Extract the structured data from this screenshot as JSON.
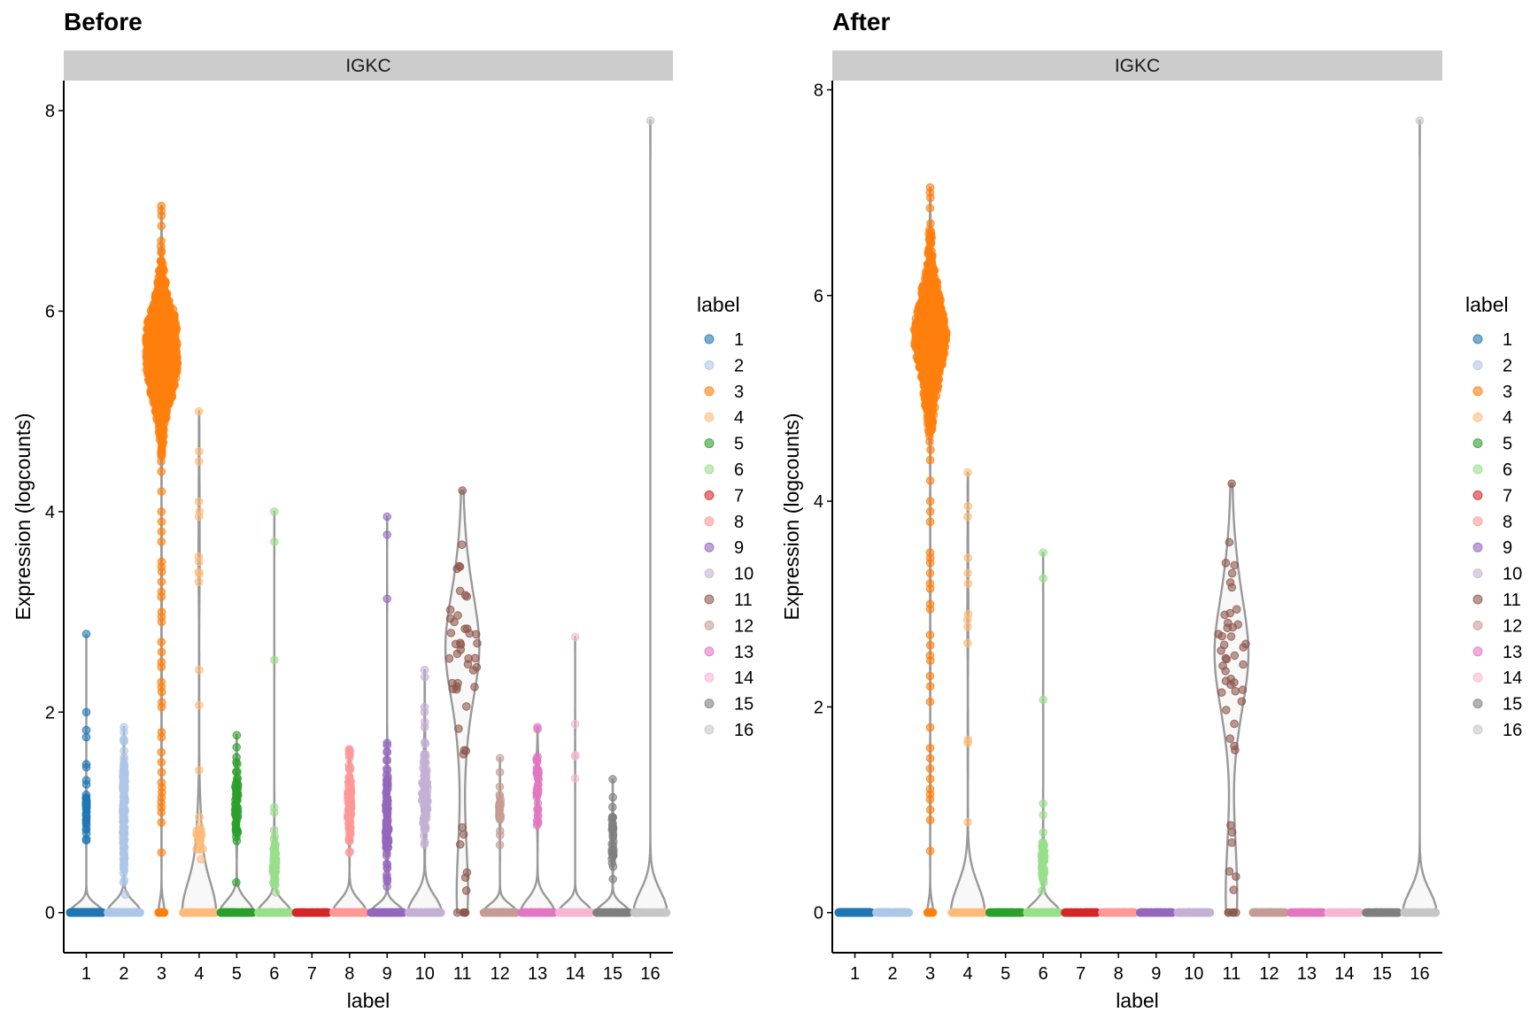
{
  "chart_data": [
    {
      "type": "violin",
      "title": "Before",
      "strip": "IGKC",
      "xlabel": "label",
      "ylabel": "Expression (logcounts)",
      "ylim": [
        -0.4,
        8.3
      ],
      "yticks": [
        0,
        2,
        4,
        6,
        8
      ],
      "categories": [
        "1",
        "2",
        "3",
        "4",
        "5",
        "6",
        "7",
        "8",
        "9",
        "10",
        "11",
        "12",
        "13",
        "14",
        "15",
        "16"
      ],
      "groups": [
        {
          "label": "1",
          "n_zero": 800,
          "cluster": {
            "n": 30,
            "mean": 1.0,
            "sd": 0.15
          },
          "extra": [
            2.78,
            2.0,
            1.82,
            1.75,
            1.48,
            1.45,
            1.32,
            0.72
          ]
        },
        {
          "label": "2",
          "n_zero": 600,
          "cluster": {
            "n": 150,
            "mean": 1.0,
            "sd": 0.33
          },
          "extra": [
            1.85,
            1.8,
            0.3,
            0.18
          ]
        },
        {
          "label": "3",
          "n_zero": 40,
          "cluster": {
            "n": 900,
            "mean": 5.6,
            "sd": 0.42
          },
          "extra": [
            7.05,
            7.0,
            6.95,
            6.85,
            6.7,
            6.6,
            4.7,
            4.5,
            4.4,
            4.2,
            4.0,
            3.9,
            3.8,
            3.7,
            3.5,
            3.45,
            3.4,
            3.3,
            3.2,
            3.15,
            3.0,
            2.95,
            2.9,
            2.7,
            2.6,
            2.5,
            2.45,
            2.3,
            2.25,
            2.2,
            2.1,
            2.05,
            1.8,
            1.75,
            1.6,
            1.5,
            1.4,
            1.3,
            1.25,
            1.2,
            1.15,
            1.1,
            1.05,
            1.0,
            0.9,
            0.6
          ]
        },
        {
          "label": "4",
          "n_zero": 150,
          "cluster": {
            "n": 20,
            "mean": 0.75,
            "sd": 0.12
          },
          "extra": [
            5.0,
            4.6,
            4.5,
            4.1,
            4.0,
            3.95,
            3.55,
            3.5,
            3.4,
            3.38,
            3.3,
            2.42,
            2.07,
            1.42
          ]
        },
        {
          "label": "5",
          "n_zero": 300,
          "cluster": {
            "n": 60,
            "mean": 1.05,
            "sd": 0.2
          },
          "extra": [
            1.77,
            1.65,
            1.55,
            1.5,
            1.48,
            0.3
          ]
        },
        {
          "label": "6",
          "n_zero": 300,
          "cluster": {
            "n": 60,
            "mean": 0.5,
            "sd": 0.15
          },
          "extra": [
            4.0,
            3.7,
            2.52,
            1.05,
            1.0
          ]
        },
        {
          "label": "7",
          "n_zero": 200,
          "cluster": {
            "n": 0,
            "mean": 0,
            "sd": 0
          },
          "extra": []
        },
        {
          "label": "8",
          "n_zero": 400,
          "cluster": {
            "n": 100,
            "mean": 1.1,
            "sd": 0.22
          },
          "extra": [
            1.63,
            1.6,
            0.6
          ]
        },
        {
          "label": "9",
          "n_zero": 300,
          "cluster": {
            "n": 100,
            "mean": 0.95,
            "sd": 0.3
          },
          "extra": [
            3.95,
            3.77,
            3.13,
            1.67,
            1.6,
            0.35,
            0.33
          ]
        },
        {
          "label": "10",
          "n_zero": 250,
          "cluster": {
            "n": 80,
            "mean": 1.2,
            "sd": 0.2
          },
          "extra": [
            2.42,
            2.35,
            2.05,
            2.0,
            1.9,
            1.85,
            1.7,
            0.68
          ]
        },
        {
          "label": "11",
          "n_zero": 5,
          "cluster": {
            "n": 35,
            "mean": 2.5,
            "sd": 0.45
          },
          "extra": [
            4.21,
            3.67,
            3.45,
            1.62,
            1.58,
            0.85,
            0.78,
            0.68,
            0.4,
            0.35,
            0.22
          ]
        },
        {
          "label": "12",
          "n_zero": 300,
          "cluster": {
            "n": 25,
            "mean": 1.05,
            "sd": 0.18
          },
          "extra": [
            1.54,
            1.4
          ]
        },
        {
          "label": "13",
          "n_zero": 250,
          "cluster": {
            "n": 40,
            "mean": 1.3,
            "sd": 0.2
          },
          "extra": [
            1.85,
            1.83,
            0.97
          ]
        },
        {
          "label": "14",
          "n_zero": 200,
          "cluster": {
            "n": 0,
            "mean": 0,
            "sd": 0
          },
          "extra": [
            2.75,
            1.88,
            1.57,
            1.56,
            1.34
          ]
        },
        {
          "label": "15",
          "n_zero": 200,
          "cluster": {
            "n": 30,
            "mean": 0.7,
            "sd": 0.15
          },
          "extra": [
            1.33,
            1.15,
            0.95
          ]
        },
        {
          "label": "16",
          "n_zero": 150,
          "cluster": {
            "n": 0,
            "mean": 0,
            "sd": 0
          },
          "extra": [
            7.9
          ]
        }
      ]
    },
    {
      "type": "violin",
      "title": "After",
      "strip": "IGKC",
      "xlabel": "label",
      "ylabel": "Expression (logcounts)",
      "ylim": [
        -0.39,
        8.09
      ],
      "yticks": [
        0,
        2,
        4,
        6,
        8
      ],
      "categories": [
        "1",
        "2",
        "3",
        "4",
        "5",
        "6",
        "7",
        "8",
        "9",
        "10",
        "11",
        "12",
        "13",
        "14",
        "15",
        "16"
      ],
      "groups": [
        {
          "label": "1",
          "n_zero": 800,
          "cluster": {
            "n": 0,
            "mean": 0,
            "sd": 0
          },
          "extra": []
        },
        {
          "label": "2",
          "n_zero": 600,
          "cluster": {
            "n": 0,
            "mean": 0,
            "sd": 0
          },
          "extra": []
        },
        {
          "label": "3",
          "n_zero": 40,
          "cluster": {
            "n": 900,
            "mean": 5.6,
            "sd": 0.42
          },
          "extra": [
            7.05,
            7.0,
            6.95,
            6.85,
            6.7,
            6.6,
            4.7,
            4.5,
            4.4,
            4.2,
            4.0,
            3.9,
            3.8,
            3.5,
            3.45,
            3.4,
            3.3,
            3.2,
            3.15,
            3.0,
            2.95,
            2.7,
            2.6,
            2.5,
            2.45,
            2.3,
            2.2,
            2.05,
            1.8,
            1.6,
            1.5,
            1.4,
            1.3,
            1.2,
            1.15,
            1.1,
            1.0,
            0.9,
            0.6
          ]
        },
        {
          "label": "4",
          "n_zero": 150,
          "cluster": {
            "n": 0,
            "mean": 0,
            "sd": 0
          },
          "extra": [
            4.28,
            3.95,
            3.85,
            3.45,
            3.3,
            3.2,
            2.9,
            2.85,
            2.78,
            2.62,
            1.68,
            1.65,
            0.88
          ]
        },
        {
          "label": "5",
          "n_zero": 300,
          "cluster": {
            "n": 0,
            "mean": 0,
            "sd": 0
          },
          "extra": []
        },
        {
          "label": "6",
          "n_zero": 300,
          "cluster": {
            "n": 50,
            "mean": 0.48,
            "sd": 0.12
          },
          "extra": [
            3.5,
            3.25,
            2.07,
            1.06,
            0.95,
            0.78
          ]
        },
        {
          "label": "7",
          "n_zero": 200,
          "cluster": {
            "n": 0,
            "mean": 0,
            "sd": 0
          },
          "extra": []
        },
        {
          "label": "8",
          "n_zero": 400,
          "cluster": {
            "n": 0,
            "mean": 0,
            "sd": 0
          },
          "extra": []
        },
        {
          "label": "9",
          "n_zero": 300,
          "cluster": {
            "n": 0,
            "mean": 0,
            "sd": 0
          },
          "extra": []
        },
        {
          "label": "10",
          "n_zero": 250,
          "cluster": {
            "n": 0,
            "mean": 0,
            "sd": 0
          },
          "extra": []
        },
        {
          "label": "11",
          "n_zero": 5,
          "cluster": {
            "n": 35,
            "mean": 2.5,
            "sd": 0.45
          },
          "extra": [
            4.17,
            3.6,
            3.4,
            1.62,
            1.58,
            0.85,
            0.78,
            0.68,
            0.4,
            0.35,
            0.22
          ]
        },
        {
          "label": "12",
          "n_zero": 300,
          "cluster": {
            "n": 0,
            "mean": 0,
            "sd": 0
          },
          "extra": []
        },
        {
          "label": "13",
          "n_zero": 250,
          "cluster": {
            "n": 0,
            "mean": 0,
            "sd": 0
          },
          "extra": []
        },
        {
          "label": "14",
          "n_zero": 200,
          "cluster": {
            "n": 0,
            "mean": 0,
            "sd": 0
          },
          "extra": []
        },
        {
          "label": "15",
          "n_zero": 200,
          "cluster": {
            "n": 0,
            "mean": 0,
            "sd": 0
          },
          "extra": []
        },
        {
          "label": "16",
          "n_zero": 150,
          "cluster": {
            "n": 0,
            "mean": 0,
            "sd": 0
          },
          "extra": [
            7.7
          ]
        }
      ]
    }
  ],
  "legend": {
    "title": "label",
    "placement": "right",
    "items": [
      "1",
      "2",
      "3",
      "4",
      "5",
      "6",
      "7",
      "8",
      "9",
      "10",
      "11",
      "12",
      "13",
      "14",
      "15",
      "16"
    ]
  },
  "colors": [
    "#1f77b4",
    "#aec7e8",
    "#ff7f0e",
    "#ffbb78",
    "#2ca02c",
    "#98df8a",
    "#d62728",
    "#ff9896",
    "#9467bd",
    "#c5b0d5",
    "#8c564b",
    "#c49c94",
    "#e377c2",
    "#f7b6d2",
    "#7f7f7f",
    "#c7c7c7"
  ],
  "strip_color": "#cccccc",
  "violin_color": "#999999"
}
